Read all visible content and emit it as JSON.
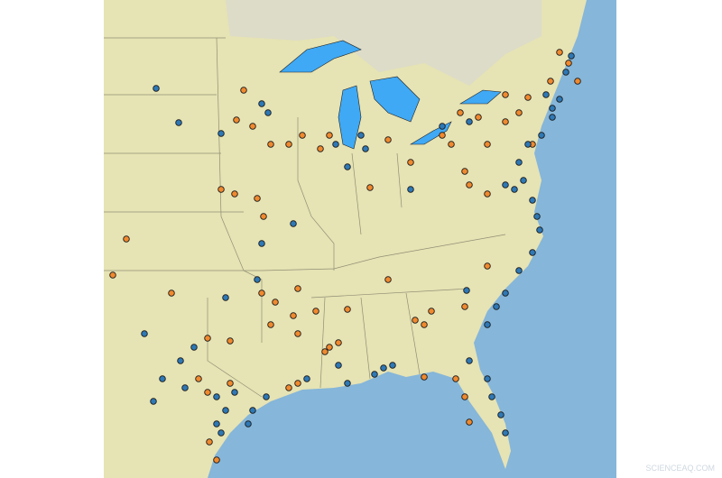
{
  "watermark": "SCIENCEAQ.COM"
}
